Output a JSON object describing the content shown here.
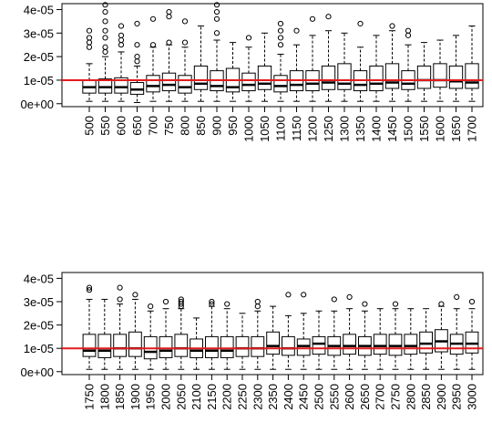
{
  "chart_data": [
    {
      "type": "box",
      "title": "",
      "xlabel": "",
      "ylabel": "",
      "ylim": [
        -1.25e-06,
        4.25e-05
      ],
      "yticks": [
        0,
        1e-05,
        2e-05,
        3e-05,
        4e-05
      ],
      "ytick_labels": [
        "0e+00",
        "1e-05",
        "2e-05",
        "3e-05",
        "4e-05"
      ],
      "reference_line": {
        "y": 1e-05,
        "color": "#e31a1c"
      },
      "categories": [
        "500",
        "550",
        "600",
        "650",
        "700",
        "750",
        "800",
        "850",
        "900",
        "950",
        "1000",
        "1050",
        "1100",
        "1150",
        "1200",
        "1250",
        "1300",
        "1350",
        "1400",
        "1450",
        "1500",
        "1550",
        "1600",
        "1650",
        "1700"
      ],
      "boxes": [
        {
          "min": 1e-06,
          "q1": 4.5e-06,
          "median": 7e-06,
          "q3": 1e-05,
          "max": 1.7e-05,
          "outliers": [
            2.4e-05,
            2.6e-05,
            2.8e-05,
            3.1e-05
          ]
        },
        {
          "min": 1e-06,
          "q1": 4.5e-06,
          "median": 7e-06,
          "q3": 1.05e-05,
          "max": 2e-05,
          "outliers": [
            2.2e-05,
            2.4e-05,
            2.8e-05,
            3.1e-05,
            3.5e-05,
            3.9e-05,
            4.2e-05
          ]
        },
        {
          "min": 1e-06,
          "q1": 4.5e-06,
          "median": 7e-06,
          "q3": 1.1e-05,
          "max": 2.2e-05,
          "outliers": [
            2.5e-05,
            2.7e-05,
            2.9e-05,
            3.3e-05
          ]
        },
        {
          "min": 5e-07,
          "q1": 4e-06,
          "median": 6e-06,
          "q3": 9e-06,
          "max": 1.6e-05,
          "outliers": [
            1.8e-05,
            2e-05,
            2.5e-05,
            3.4e-05
          ]
        },
        {
          "min": 1e-06,
          "q1": 5e-06,
          "median": 7.5e-06,
          "q3": 1.2e-05,
          "max": 2.4e-05,
          "outliers": [
            2.5e-05,
            3.6e-05
          ]
        },
        {
          "min": 1e-06,
          "q1": 5.5e-06,
          "median": 8e-06,
          "q3": 1.3e-05,
          "max": 2.5e-05,
          "outliers": [
            2.6e-05,
            3.7e-05,
            3.9e-05
          ]
        },
        {
          "min": 1e-06,
          "q1": 4.5e-06,
          "median": 7e-06,
          "q3": 1.2e-05,
          "max": 2.4e-05,
          "outliers": [
            2.6e-05,
            3.5e-05
          ]
        },
        {
          "min": 1e-06,
          "q1": 6e-06,
          "median": 8.5e-06,
          "q3": 1.6e-05,
          "max": 3.3e-05,
          "outliers": []
        },
        {
          "min": 1e-06,
          "q1": 5.5e-06,
          "median": 7.5e-06,
          "q3": 1.4e-05,
          "max": 2.7e-05,
          "outliers": [
            3e-05,
            3.6e-05,
            3.9e-05,
            4.2e-05
          ]
        },
        {
          "min": 1e-06,
          "q1": 5e-06,
          "median": 7e-06,
          "q3": 1.5e-05,
          "max": 2.6e-05,
          "outliers": []
        },
        {
          "min": 1e-06,
          "q1": 5.5e-06,
          "median": 8e-06,
          "q3": 1.3e-05,
          "max": 2.4e-05,
          "outliers": [
            2.8e-05
          ]
        },
        {
          "min": 1e-06,
          "q1": 6e-06,
          "median": 8.5e-06,
          "q3": 1.6e-05,
          "max": 3e-05,
          "outliers": []
        },
        {
          "min": 1e-06,
          "q1": 5e-06,
          "median": 7.5e-06,
          "q3": 1.2e-05,
          "max": 2.1e-05,
          "outliers": [
            2.5e-05,
            2.8e-05,
            3.1e-05,
            3.4e-05
          ]
        },
        {
          "min": 1e-06,
          "q1": 5.5e-06,
          "median": 8e-06,
          "q3": 1.4e-05,
          "max": 2.5e-05,
          "outliers": [
            3.1e-05
          ]
        },
        {
          "min": 1e-06,
          "q1": 5.5e-06,
          "median": 8.5e-06,
          "q3": 1.4e-05,
          "max": 2.9e-05,
          "outliers": [
            3.6e-05
          ]
        },
        {
          "min": 1e-06,
          "q1": 6e-06,
          "median": 9e-06,
          "q3": 1.6e-05,
          "max": 3.1e-05,
          "outliers": [
            3.7e-05
          ]
        },
        {
          "min": 1e-06,
          "q1": 6e-06,
          "median": 8.5e-06,
          "q3": 1.7e-05,
          "max": 3e-05,
          "outliers": []
        },
        {
          "min": 1e-06,
          "q1": 5.5e-06,
          "median": 8e-06,
          "q3": 1.4e-05,
          "max": 2.4e-05,
          "outliers": [
            3.4e-05
          ]
        },
        {
          "min": 1e-06,
          "q1": 5.5e-06,
          "median": 8.5e-06,
          "q3": 1.6e-05,
          "max": 2.9e-05,
          "outliers": []
        },
        {
          "min": 1e-06,
          "q1": 6.5e-06,
          "median": 9e-06,
          "q3": 1.7e-05,
          "max": 3.1e-05,
          "outliers": [
            3.3e-05
          ]
        },
        {
          "min": 1e-06,
          "q1": 6e-06,
          "median": 8.5e-06,
          "q3": 1.4e-05,
          "max": 2.5e-05,
          "outliers": [
            2.9e-05,
            3.1e-05
          ]
        },
        {
          "min": 1e-06,
          "q1": 6.5e-06,
          "median": 1e-05,
          "q3": 1.6e-05,
          "max": 2.6e-05,
          "outliers": []
        },
        {
          "min": 1e-06,
          "q1": 7e-06,
          "median": 1e-05,
          "q3": 1.7e-05,
          "max": 2.7e-05,
          "outliers": []
        },
        {
          "min": 1e-06,
          "q1": 6.5e-06,
          "median": 9.5e-06,
          "q3": 1.6e-05,
          "max": 2.9e-05,
          "outliers": []
        },
        {
          "min": 1e-06,
          "q1": 6.5e-06,
          "median": 9e-06,
          "q3": 1.7e-05,
          "max": 3.3e-05,
          "outliers": []
        }
      ]
    },
    {
      "type": "box",
      "title": "",
      "xlabel": "",
      "ylabel": "",
      "ylim": [
        -1.25e-06,
        4.25e-05
      ],
      "yticks": [
        0,
        1e-05,
        2e-05,
        3e-05,
        4e-05
      ],
      "ytick_labels": [
        "0e+00",
        "1e-05",
        "2e-05",
        "3e-05",
        "4e-05"
      ],
      "reference_line": {
        "y": 1e-05,
        "color": "#e31a1c"
      },
      "categories": [
        "1750",
        "1800",
        "1850",
        "1900",
        "1950",
        "2000",
        "2050",
        "2100",
        "2150",
        "2200",
        "2250",
        "2300",
        "2350",
        "2400",
        "2450",
        "2500",
        "2550",
        "2600",
        "2650",
        "2700",
        "2750",
        "2800",
        "2850",
        "2900",
        "2950",
        "3000"
      ],
      "boxes": [
        {
          "min": 1e-06,
          "q1": 6.5e-06,
          "median": 9e-06,
          "q3": 1.6e-05,
          "max": 3.1e-05,
          "outliers": [
            3.5e-05,
            3.6e-05
          ]
        },
        {
          "min": 1e-06,
          "q1": 6e-06,
          "median": 9e-06,
          "q3": 1.6e-05,
          "max": 3.1e-05,
          "outliers": []
        },
        {
          "min": 1e-06,
          "q1": 6.5e-06,
          "median": 1e-05,
          "q3": 1.6e-05,
          "max": 2.9e-05,
          "outliers": [
            3.1e-05,
            3.6e-05
          ]
        },
        {
          "min": 1e-06,
          "q1": 6.5e-06,
          "median": 1e-05,
          "q3": 1.7e-05,
          "max": 3.1e-05,
          "outliers": [
            3.3e-05
          ]
        },
        {
          "min": 1e-06,
          "q1": 5.5e-06,
          "median": 8.5e-06,
          "q3": 1.5e-05,
          "max": 2.6e-05,
          "outliers": [
            2.8e-05
          ]
        },
        {
          "min": 1e-06,
          "q1": 6e-06,
          "median": 9e-06,
          "q3": 1.5e-05,
          "max": 2.7e-05,
          "outliers": [
            3e-05
          ]
        },
        {
          "min": 1e-06,
          "q1": 6.5e-06,
          "median": 1e-05,
          "q3": 1.6e-05,
          "max": 2.7e-05,
          "outliers": [
            2.8e-05,
            2.9e-05,
            3e-05,
            3.1e-05
          ]
        },
        {
          "min": 1e-06,
          "q1": 6e-06,
          "median": 9e-06,
          "q3": 1.4e-05,
          "max": 2.3e-05,
          "outliers": []
        },
        {
          "min": 1e-06,
          "q1": 6e-06,
          "median": 9e-06,
          "q3": 1.5e-05,
          "max": 2.8e-05,
          "outliers": [
            2.9e-05,
            3e-05
          ]
        },
        {
          "min": 1e-06,
          "q1": 6e-06,
          "median": 9e-06,
          "q3": 1.5e-05,
          "max": 2.7e-05,
          "outliers": [
            2.9e-05
          ]
        },
        {
          "min": 1e-06,
          "q1": 6.5e-06,
          "median": 1e-05,
          "q3": 1.5e-05,
          "max": 2.5e-05,
          "outliers": []
        },
        {
          "min": 1e-06,
          "q1": 6.5e-06,
          "median": 1e-05,
          "q3": 1.5e-05,
          "max": 2.6e-05,
          "outliers": [
            2.8e-05,
            3e-05
          ]
        },
        {
          "min": 1e-06,
          "q1": 7.5e-06,
          "median": 1.1e-05,
          "q3": 1.7e-05,
          "max": 2.8e-05,
          "outliers": []
        },
        {
          "min": 1e-06,
          "q1": 7e-06,
          "median": 1e-05,
          "q3": 1.5e-05,
          "max": 2.4e-05,
          "outliers": [
            3.3e-05
          ]
        },
        {
          "min": 1e-06,
          "q1": 7e-06,
          "median": 1.1e-05,
          "q3": 1.4e-05,
          "max": 2.5e-05,
          "outliers": [
            3.3e-05
          ]
        },
        {
          "min": 1e-06,
          "q1": 7.5e-06,
          "median": 1.2e-05,
          "q3": 1.5e-05,
          "max": 2.6e-05,
          "outliers": []
        },
        {
          "min": 1e-06,
          "q1": 7e-06,
          "median": 1.1e-05,
          "q3": 1.5e-05,
          "max": 2.6e-05,
          "outliers": [
            3.1e-05
          ]
        },
        {
          "min": 1e-06,
          "q1": 7.5e-06,
          "median": 1.1e-05,
          "q3": 1.6e-05,
          "max": 2.7e-05,
          "outliers": [
            3.2e-05
          ]
        },
        {
          "min": 1e-06,
          "q1": 7e-06,
          "median": 1.1e-05,
          "q3": 1.5e-05,
          "max": 2.6e-05,
          "outliers": [
            2.9e-05
          ]
        },
        {
          "min": 1e-06,
          "q1": 7.5e-06,
          "median": 1.1e-05,
          "q3": 1.6e-05,
          "max": 2.7e-05,
          "outliers": []
        },
        {
          "min": 1e-06,
          "q1": 7e-06,
          "median": 1.1e-05,
          "q3": 1.6e-05,
          "max": 2.7e-05,
          "outliers": [
            2.9e-05
          ]
        },
        {
          "min": 1e-06,
          "q1": 7.5e-06,
          "median": 1.1e-05,
          "q3": 1.6e-05,
          "max": 2.7e-05,
          "outliers": []
        },
        {
          "min": 1e-06,
          "q1": 8e-06,
          "median": 1.2e-05,
          "q3": 1.7e-05,
          "max": 2.7e-05,
          "outliers": []
        },
        {
          "min": 1e-06,
          "q1": 8.5e-06,
          "median": 1.3e-05,
          "q3": 1.8e-05,
          "max": 2.8e-05,
          "outliers": [
            2.9e-05
          ]
        },
        {
          "min": 1e-06,
          "q1": 7.5e-06,
          "median": 1.2e-05,
          "q3": 1.6e-05,
          "max": 2.7e-05,
          "outliers": [
            3.2e-05
          ]
        },
        {
          "min": 1e-06,
          "q1": 8e-06,
          "median": 1.2e-05,
          "q3": 1.7e-05,
          "max": 2.7e-05,
          "outliers": [
            3e-05
          ]
        }
      ]
    }
  ]
}
